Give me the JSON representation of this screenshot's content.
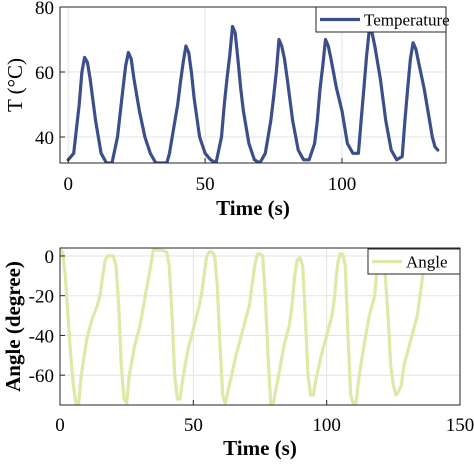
{
  "chart_data": [
    {
      "type": "line",
      "xlabel": "Time (s)",
      "ylabel": "T (°C)",
      "xlim": [
        -3,
        138
      ],
      "ylim": [
        32,
        80
      ],
      "xticks": [
        0,
        50,
        100
      ],
      "yticks": [
        40,
        60,
        80
      ],
      "grid": true,
      "legend_position": "top-right",
      "series": [
        {
          "name": "Temperature",
          "color": "#3c4f8a",
          "x": [
            0,
            2,
            4,
            5,
            6,
            7,
            8,
            10,
            12,
            14,
            16,
            18,
            20,
            21,
            22,
            23,
            24,
            26,
            28,
            30,
            32,
            34,
            36,
            37,
            38,
            40,
            41,
            42,
            43,
            44,
            45,
            46,
            48,
            50,
            52,
            54,
            56,
            57,
            58,
            59,
            60,
            61,
            62,
            63,
            64,
            66,
            68,
            70,
            72,
            74,
            75,
            76,
            77,
            78,
            79,
            80,
            82,
            84,
            86,
            88,
            90,
            91,
            92,
            93,
            94,
            95,
            96,
            98,
            100,
            102,
            104,
            106,
            107,
            108,
            109,
            110,
            111,
            112,
            114,
            116,
            118,
            120,
            122,
            123,
            124,
            125,
            126,
            127,
            128,
            130,
            132,
            133,
            134,
            135
          ],
          "y": [
            33,
            35,
            50,
            60,
            64.5,
            63,
            58,
            45,
            35,
            32,
            32,
            40,
            55,
            62,
            66,
            64,
            58,
            48,
            40,
            35,
            32,
            32,
            32,
            35,
            40,
            50,
            57,
            63,
            68,
            66,
            60,
            52,
            40,
            35,
            33,
            32,
            40,
            50,
            58,
            65,
            74,
            72,
            64,
            55,
            48,
            38,
            33,
            32,
            35,
            45,
            52,
            60,
            70,
            68,
            64,
            58,
            45,
            36,
            33,
            33,
            38,
            45,
            55,
            62,
            70,
            68,
            64,
            55,
            48,
            38,
            35,
            35,
            45,
            55,
            65,
            73,
            72,
            68,
            58,
            45,
            36,
            33,
            34,
            45,
            55,
            64,
            69,
            67,
            63,
            55,
            45,
            40,
            37,
            36
          ]
        }
      ]
    },
    {
      "type": "line",
      "xlabel": "Time (s)",
      "ylabel": "Angle (degree)",
      "xlim": [
        0,
        150
      ],
      "ylim": [
        -75,
        4
      ],
      "xticks": [
        0,
        50,
        100,
        150
      ],
      "yticks": [
        0,
        -20,
        -40,
        -60
      ],
      "grid": true,
      "legend_position": "top-right",
      "series": [
        {
          "name": "Angle",
          "color": "#dde9a6",
          "x": [
            0,
            1,
            2,
            3,
            4,
            5,
            6,
            7,
            8,
            10,
            12,
            14,
            15,
            16,
            17,
            18,
            19,
            20,
            21,
            22,
            23,
            24,
            25,
            26,
            28,
            30,
            32,
            34,
            35,
            36,
            38,
            40,
            41,
            42,
            43,
            44,
            45,
            46,
            48,
            50,
            52,
            53,
            54,
            55,
            56,
            57,
            58,
            59,
            60,
            61,
            62,
            64,
            66,
            68,
            70,
            71,
            72,
            73,
            74,
            75,
            76,
            77,
            78,
            79,
            80,
            82,
            84,
            86,
            87,
            88,
            89,
            90,
            91,
            92,
            93,
            94,
            95,
            96,
            98,
            100,
            102,
            103,
            104,
            105,
            106,
            107,
            108,
            109,
            110,
            111,
            112,
            114,
            116,
            118,
            119,
            120,
            121,
            122,
            123,
            124,
            125,
            126,
            127,
            128,
            129,
            130,
            132,
            134,
            135,
            136,
            137
          ],
          "y": [
            3,
            2,
            -10,
            -30,
            -50,
            -65,
            -74,
            -74,
            -60,
            -42,
            -32,
            -25,
            -20,
            -10,
            -2,
            0,
            0,
            0,
            -5,
            -25,
            -55,
            -72,
            -74,
            -60,
            -45,
            -35,
            -20,
            -5,
            3,
            3,
            3,
            2,
            -5,
            -30,
            -60,
            -72,
            -72,
            -62,
            -47,
            -37,
            -26,
            -20,
            -10,
            0,
            2,
            2,
            0,
            -15,
            -45,
            -70,
            -74,
            -62,
            -50,
            -40,
            -30,
            -25,
            -15,
            -5,
            1,
            1,
            0,
            -20,
            -50,
            -74,
            -74,
            -60,
            -45,
            -35,
            -25,
            -10,
            -2,
            -1,
            -5,
            -30,
            -60,
            -70,
            -70,
            -62,
            -50,
            -40,
            -30,
            -20,
            -5,
            1,
            1,
            -5,
            -40,
            -70,
            -74,
            -74,
            -62,
            -45,
            -30,
            -20,
            -5,
            0,
            0,
            -10,
            -30,
            -55,
            -65,
            -70,
            -68,
            -65,
            -55,
            -50,
            -40,
            -30,
            -20,
            -10,
            -2
          ]
        }
      ]
    }
  ]
}
